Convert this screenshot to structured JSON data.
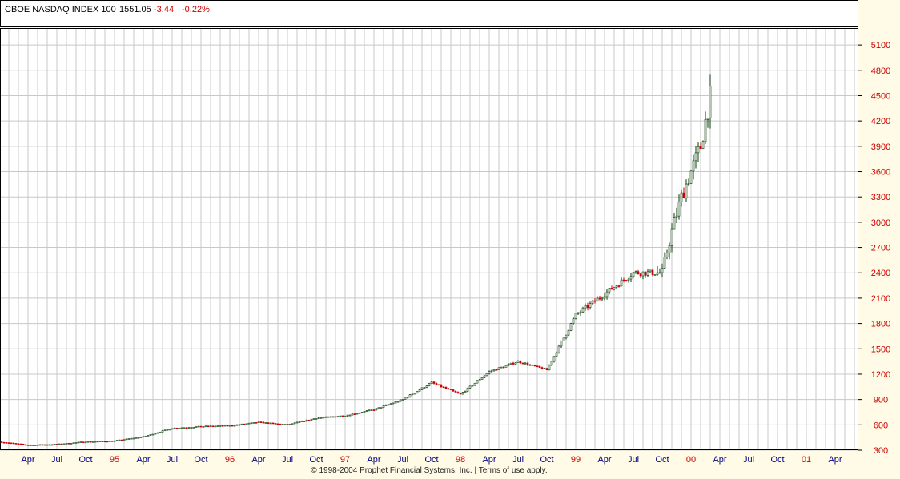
{
  "header": {
    "symbol_name": "CBOE NASDAQ INDEX 100",
    "last": "1551.05",
    "change": "-3.44",
    "change_pct": "-0.22%"
  },
  "footer": {
    "copyright": "© 1998-2004 Prophet Financial Systems, Inc.",
    "separator": "|",
    "terms": "Terms of use apply."
  },
  "colors": {
    "up": "#0a3a0a",
    "down": "#cc0000",
    "grid": "#c8c8c8",
    "axis_text": "#cc0000",
    "month_text": "#000080",
    "background": "#ffffff"
  },
  "chart_data": {
    "type": "candlestick",
    "title": "CBOE NASDAQ INDEX 100",
    "ylim": [
      300,
      5300
    ],
    "y_ticks": [
      300,
      600,
      900,
      1200,
      1500,
      1800,
      2100,
      2400,
      2700,
      3000,
      3300,
      3600,
      3900,
      4200,
      4500,
      4800,
      5100
    ],
    "x_tick_labels": [
      "Apr",
      "Jul",
      "Oct",
      "95",
      "Apr",
      "Jul",
      "Oct",
      "96",
      "Apr",
      "Jul",
      "Oct",
      "97",
      "Apr",
      "Jul",
      "Oct",
      "98",
      "Apr",
      "Jul",
      "Oct",
      "99",
      "Apr",
      "Jul",
      "Oct",
      "00",
      "Apr",
      "Jul",
      "Oct",
      "01",
      "Apr"
    ],
    "x_range": [
      "1994-01",
      "2001-06"
    ],
    "y_tick_labels": [
      "300",
      "600",
      "900",
      "1200",
      "1500",
      "1800",
      "2100",
      "2400",
      "2700",
      "3000",
      "3300",
      "3600",
      "3900",
      "4200",
      "4500",
      "4800",
      "5100"
    ],
    "series": [
      {
        "x": [
          "1994-01",
          "1994-04",
          "1994-07",
          "1994-10",
          "1995-01",
          "1995-04",
          "1995-07",
          "1995-10",
          "1996-01",
          "1996-04",
          "1996-07",
          "1996-10",
          "1997-01",
          "1997-04",
          "1997-07",
          "1997-10",
          "1998-01",
          "1998-04",
          "1998-07",
          "1998-10",
          "1999-01",
          "1999-04",
          "1999-07",
          "1999-10",
          "1999-11",
          "1999-12",
          "2000-01",
          "2000-02",
          "2000-03"
        ],
        "values": [
          400,
          360,
          370,
          400,
          410,
          460,
          560,
          580,
          590,
          630,
          600,
          680,
          710,
          780,
          900,
          1100,
          960,
          1230,
          1350,
          1250,
          1900,
          2150,
          2400,
          2400,
          2900,
          3300,
          3600,
          3900,
          4500
        ]
      }
    ]
  }
}
